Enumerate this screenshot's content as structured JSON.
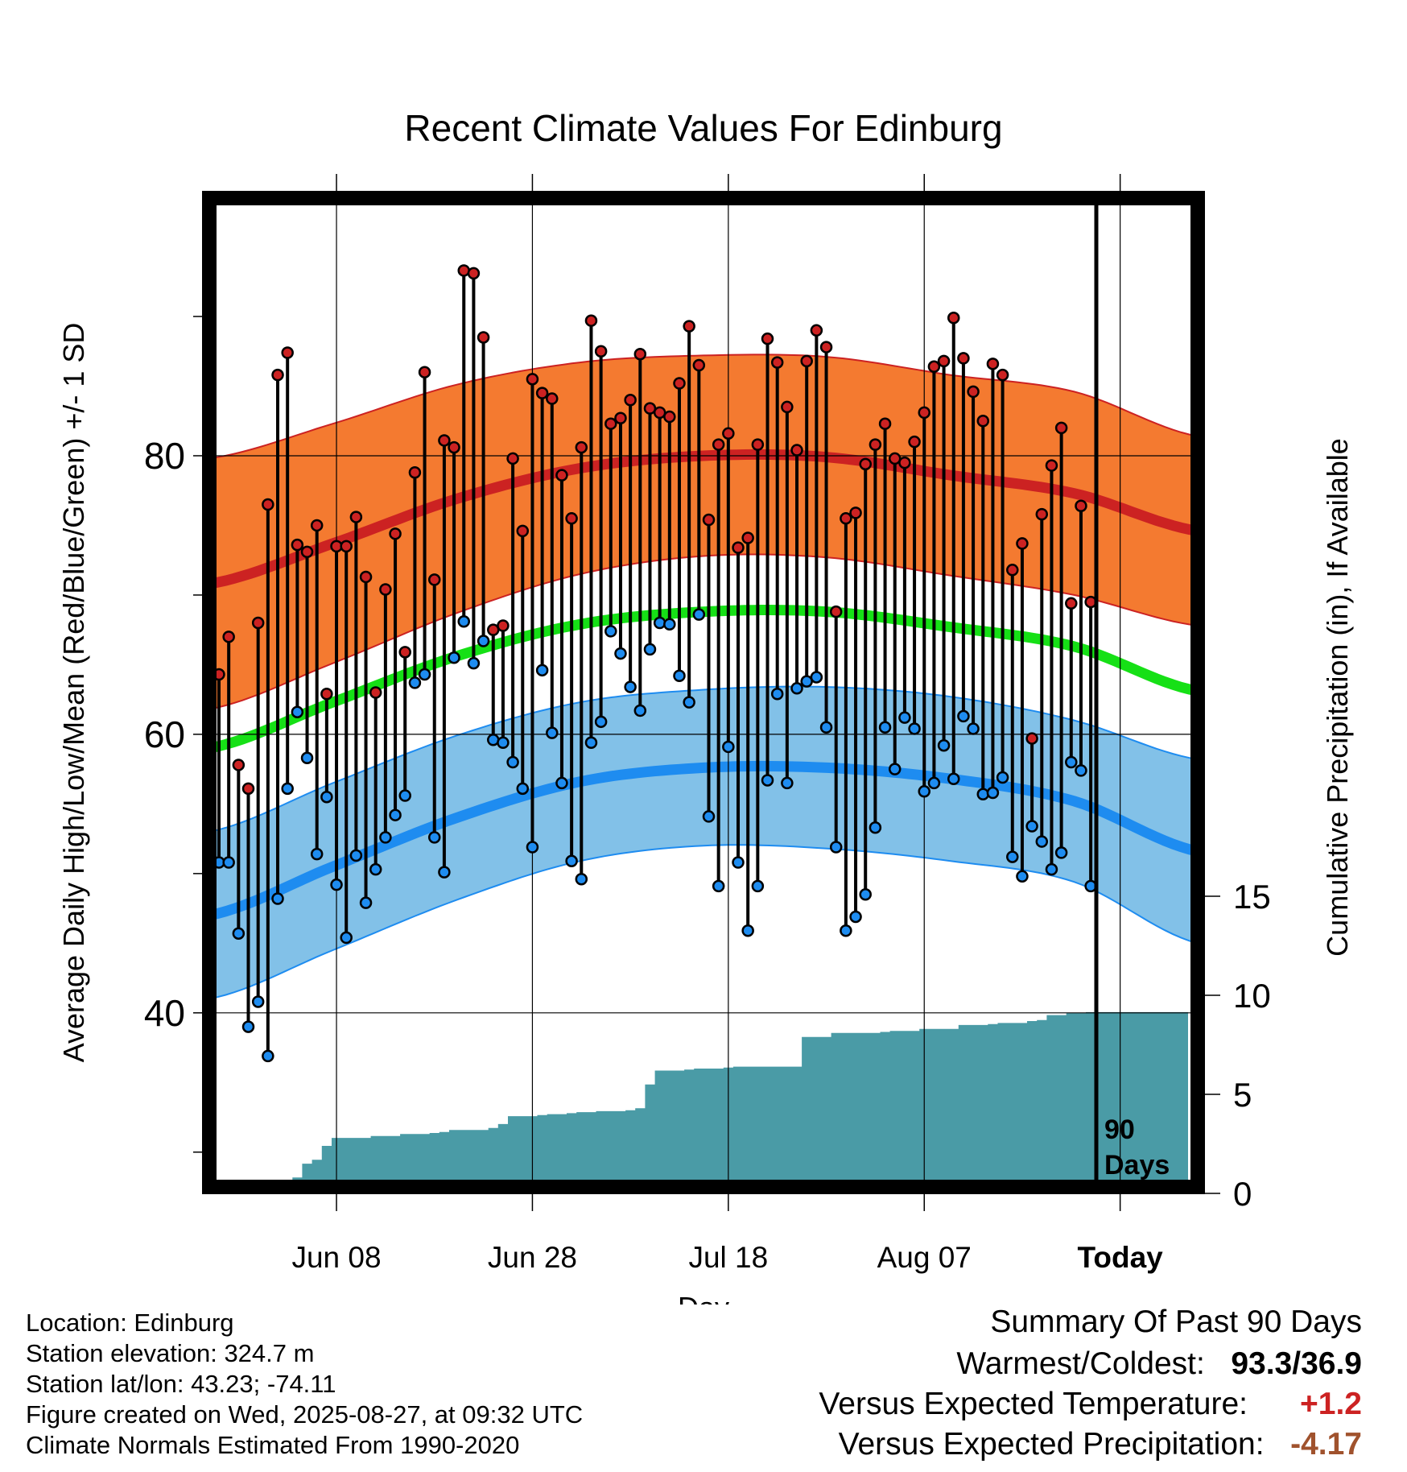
{
  "chart_data": {
    "type": "line",
    "title": "Recent Climate Values For Edinburg",
    "xlabel": "Day",
    "ylabel_left": "Average Daily High/Low/Mean (Red/Blue/Green) +/- 1 SD",
    "ylabel_right": "Cumulative Precipitation (in), If Available",
    "x_ticks": [
      "Jun 08",
      "Jun 28",
      "Jul 18",
      "Aug 07",
      "Today"
    ],
    "y_left_ticks": [
      "40",
      "60",
      "80"
    ],
    "y_right_ticks": [
      "0",
      "5",
      "10",
      "15"
    ],
    "ylim_left": [
      27.5,
      98.5
    ],
    "ylim_right": [
      0,
      60
    ],
    "today_label": "90",
    "today_label_2": "Days",
    "colors": {
      "high_band": "#f47a30",
      "high_line": "#cc2222",
      "low_band": "#82c1e8",
      "low_line": "#1e8cf0",
      "mean_line": "#16e016",
      "precip": "#4a9ba6",
      "high_dot": "#cc2222",
      "low_dot": "#1e8cf0"
    },
    "normal_high": [
      70.8,
      73.7,
      76.9,
      79.1,
      80.0,
      79.9,
      78.6,
      77.3,
      74.6
    ],
    "normal_high_sd": [
      9.0,
      8.6,
      8.2,
      7.6,
      7.2,
      7.2,
      7.2,
      7.3,
      6.8
    ],
    "normal_low": [
      47.0,
      50.5,
      54.0,
      56.6,
      57.6,
      57.6,
      56.8,
      55.2,
      51.6
    ],
    "normal_low_sd": [
      6.0,
      6.0,
      5.9,
      5.7,
      5.6,
      5.8,
      5.9,
      5.8,
      6.6
    ],
    "normal_mean": [
      59.0,
      62.3,
      65.6,
      67.9,
      68.8,
      68.8,
      67.7,
      66.3,
      63.1
    ],
    "daily_high": [
      64.3,
      67.0,
      57.8,
      56.1,
      68.0,
      76.5,
      85.8,
      87.4,
      73.6,
      73.1,
      75.0,
      62.9,
      73.5,
      73.5,
      75.6,
      71.3,
      63.0,
      70.4,
      74.4,
      65.9,
      78.8,
      86.0,
      71.1,
      81.1,
      80.6,
      93.3,
      93.1,
      88.5,
      67.5,
      67.8,
      79.8,
      74.6,
      85.5,
      84.5,
      84.1,
      78.6,
      75.5,
      80.6,
      89.7,
      87.5,
      82.3,
      82.7,
      84.0,
      87.3,
      83.4,
      83.1,
      82.8,
      85.2,
      89.3,
      86.5,
      75.4,
      80.8,
      81.6,
      73.4,
      74.1,
      80.8,
      88.4,
      86.7,
      83.5,
      80.4,
      86.8,
      89.0,
      87.8,
      68.8,
      75.5,
      75.9,
      79.4,
      80.8,
      82.3,
      79.8,
      79.5,
      81.0,
      83.1,
      86.4,
      86.8,
      89.9,
      87.0,
      84.6,
      82.5,
      86.6,
      85.8,
      71.8,
      73.7,
      59.7,
      75.8,
      79.3,
      82.0,
      69.4,
      76.4,
      69.5
    ],
    "daily_low": [
      50.8,
      50.8,
      45.7,
      39.0,
      40.8,
      36.9,
      48.2,
      56.1,
      61.6,
      58.3,
      51.4,
      55.5,
      49.2,
      45.4,
      51.3,
      47.9,
      50.3,
      52.6,
      54.2,
      55.6,
      63.7,
      64.3,
      52.6,
      50.1,
      65.5,
      68.1,
      65.1,
      66.7,
      59.6,
      59.4,
      58.0,
      56.1,
      51.9,
      64.6,
      60.1,
      56.5,
      50.9,
      49.6,
      59.4,
      60.9,
      67.4,
      65.8,
      63.4,
      61.7,
      66.1,
      68.0,
      67.9,
      64.2,
      62.3,
      68.6,
      54.1,
      49.1,
      59.1,
      50.8,
      45.9,
      49.1,
      56.7,
      62.9,
      56.5,
      63.3,
      63.8,
      64.1,
      60.5,
      51.9,
      45.9,
      46.9,
      48.5,
      53.3,
      60.5,
      57.5,
      61.2,
      60.4,
      55.9,
      56.5,
      59.2,
      56.8,
      61.3,
      60.4,
      55.7,
      55.8,
      56.9,
      51.2,
      49.8,
      53.4,
      52.3,
      50.3,
      51.5,
      58.0,
      57.4,
      49.1
    ],
    "cumulative_precip": [
      0.0,
      0.0,
      0.5,
      0.5,
      0.5,
      0.5,
      0.5,
      0.5,
      0.8,
      1.5,
      1.7,
      2.4,
      2.8,
      2.8,
      2.8,
      2.8,
      2.9,
      2.9,
      2.9,
      3.0,
      3.0,
      3.0,
      3.05,
      3.1,
      3.2,
      3.2,
      3.2,
      3.2,
      3.3,
      3.5,
      3.9,
      3.9,
      3.9,
      3.95,
      4.0,
      4.0,
      4.05,
      4.1,
      4.1,
      4.15,
      4.15,
      4.15,
      4.2,
      4.3,
      5.5,
      6.2,
      6.2,
      6.2,
      6.25,
      6.3,
      6.3,
      6.3,
      6.35,
      6.4,
      6.4,
      6.4,
      6.4,
      6.4,
      6.4,
      6.4,
      7.9,
      7.9,
      7.9,
      8.1,
      8.1,
      8.1,
      8.1,
      8.1,
      8.15,
      8.2,
      8.2,
      8.2,
      8.3,
      8.3,
      8.3,
      8.3,
      8.5,
      8.5,
      8.5,
      8.55,
      8.6,
      8.6,
      8.6,
      8.7,
      8.75,
      9.0,
      9.0,
      9.1,
      9.1,
      9.15
    ]
  },
  "info": {
    "location": "Location: Edinburg",
    "elevation": "Station elevation: 324.7 m",
    "latlon": "Station lat/lon: 43.23; -74.11",
    "created": "Figure created on Wed, 2025-08-27, at 09:32 UTC",
    "normals": "Climate Normals Estimated From 1990-2020"
  },
  "summary": {
    "title": "Summary Of Past 90 Days",
    "warm_cold_label": "Warmest/Coldest:",
    "warm_cold_value": "93.3/36.9",
    "temp_label": "Versus Expected Temperature:",
    "temp_value": "+1.2",
    "temp_color": "#cc2222",
    "precip_label": "Versus Expected Precipitation:",
    "precip_value": "-4.17",
    "precip_color": "#a0522d"
  }
}
